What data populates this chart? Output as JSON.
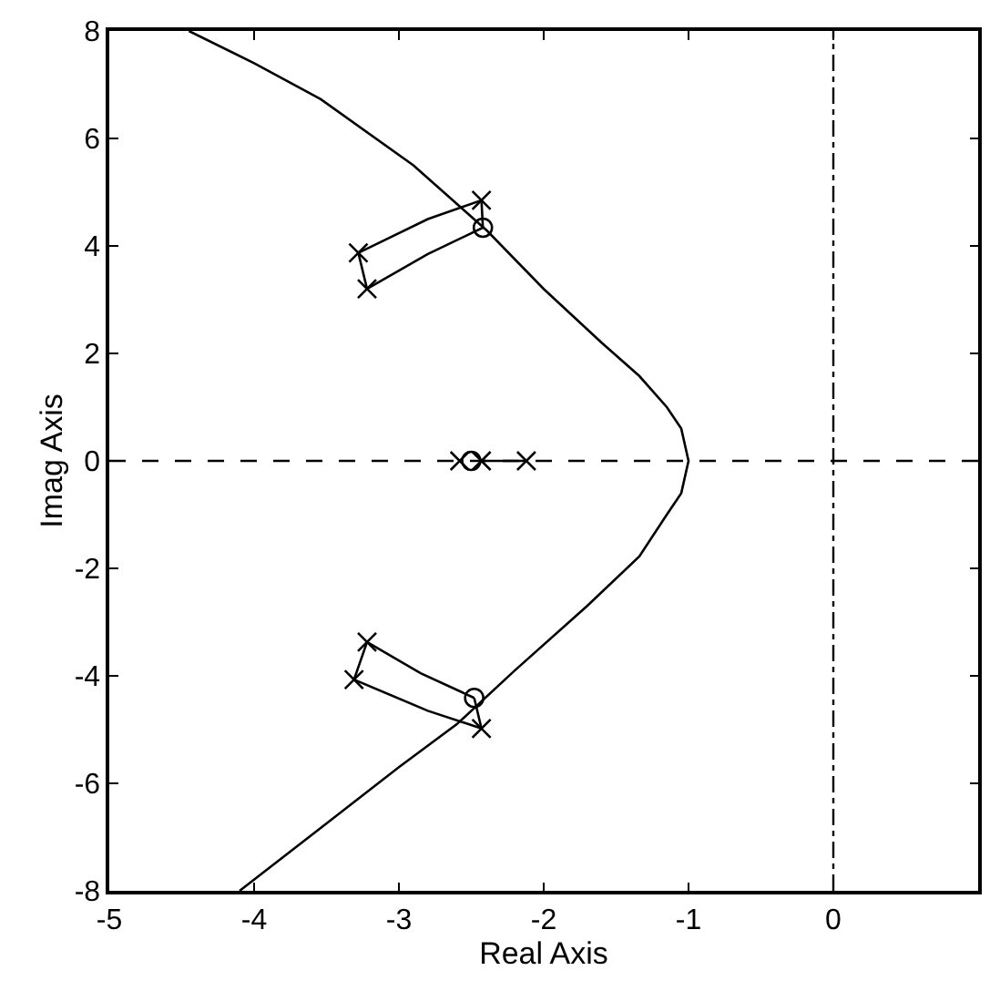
{
  "chart_data": {
    "type": "line",
    "xlabel": "Real Axis",
    "ylabel": "Imag Axis",
    "xlim": [
      -5,
      1
    ],
    "xticks": [
      -5,
      -4,
      -3,
      -2,
      -1,
      0
    ],
    "ylim": [
      -8,
      8
    ],
    "yticks": [
      -8,
      -6,
      -4,
      -2,
      0,
      2,
      4,
      6,
      8
    ],
    "grid": false,
    "ref_lines": [
      {
        "axis": "y",
        "value": 0,
        "color": "#000000",
        "line_style": "dashed"
      },
      {
        "axis": "x",
        "value": 0,
        "color": "#000000"
      }
    ],
    "series": [
      {
        "color": "#000000",
        "marker": "none",
        "x": [
          -4.45,
          -4.0,
          -3.54,
          -2.9,
          -2.39,
          -2.0,
          -1.6,
          -1.34,
          -1.15,
          -1.05,
          -1.0,
          -1.05,
          -1.15,
          -1.34,
          -1.7,
          -2.2,
          -2.6,
          -3.0,
          -3.54,
          -4.1
        ],
        "values": [
          8,
          7.4,
          6.73,
          5.5,
          4.28,
          3.2,
          2.2,
          1.58,
          1.0,
          0.6,
          0,
          -0.6,
          -1.0,
          -1.78,
          -2.7,
          -3.9,
          -4.9,
          -5.7,
          -6.83,
          -8
        ]
      },
      {
        "color": "#000000",
        "marker": "none",
        "x": [
          -3.28,
          -2.8,
          -2.43
        ],
        "values": [
          3.87,
          4.5,
          4.85
        ]
      },
      {
        "color": "#000000",
        "marker": "none",
        "x": [
          -3.22,
          -2.8,
          -2.42,
          -2.43
        ],
        "values": [
          3.2,
          3.85,
          4.34,
          4.85
        ]
      },
      {
        "color": "#000000",
        "marker": "none",
        "x": [
          -3.22,
          -3.28
        ],
        "values": [
          3.2,
          3.87
        ]
      },
      {
        "color": "#000000",
        "marker": "none",
        "x": [
          -3.22,
          -2.85,
          -2.48
        ],
        "values": [
          -3.37,
          -3.95,
          -4.41
        ]
      },
      {
        "color": "#000000",
        "marker": "none",
        "x": [
          -3.31,
          -2.8,
          -2.43,
          -2.48
        ],
        "values": [
          -4.07,
          -4.65,
          -4.98,
          -4.41
        ]
      },
      {
        "color": "#000000",
        "marker": "none",
        "x": [
          -3.22,
          -3.31
        ],
        "values": [
          -3.37,
          -4.07
        ]
      },
      {
        "color": "#000000",
        "marker": "none",
        "x": [
          -2.43,
          -2.12
        ],
        "values": [
          0,
          0
        ]
      },
      {
        "type": "scatter",
        "color": "#000000",
        "marker": "cross",
        "x": [
          -2.43,
          -3.28,
          -3.22,
          -3.22,
          -3.31,
          -2.43,
          -2.58,
          -2.43,
          -2.12
        ],
        "values": [
          4.85,
          3.87,
          3.2,
          -3.37,
          -4.07,
          -4.98,
          0,
          0,
          0
        ]
      },
      {
        "type": "scatter",
        "color": "#000000",
        "marker": "circle",
        "x": [
          -2.42,
          -2.48,
          -2.5
        ],
        "values": [
          4.34,
          -4.41,
          0
        ]
      }
    ]
  }
}
